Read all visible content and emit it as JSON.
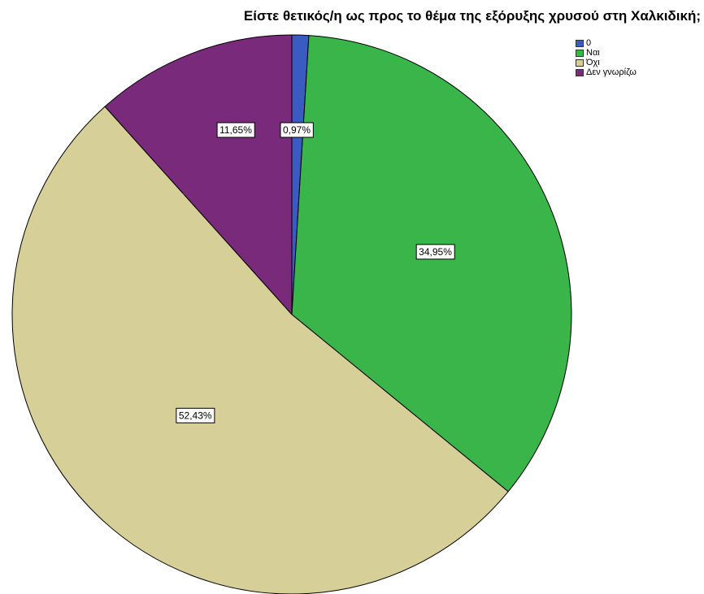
{
  "chart_data": {
    "type": "pie",
    "title": "Είστε θετικός/η ως προς το θέμα της εξόρυξης χρυσού στη Χαλκιδική;",
    "categories": [
      "0",
      "Ναι",
      "Όχι",
      "Δεν γνωρίζω"
    ],
    "values": [
      0.97,
      34.95,
      52.43,
      11.65
    ],
    "data_labels": [
      "0,97%",
      "34,95%",
      "52,43%",
      "11,65%"
    ],
    "colors": [
      "#3a5bbf",
      "#3ab54a",
      "#d6cf98",
      "#7a2a7a"
    ],
    "start_angle": "12 o'clock",
    "direction": "clockwise",
    "legend_position": "top-right"
  }
}
